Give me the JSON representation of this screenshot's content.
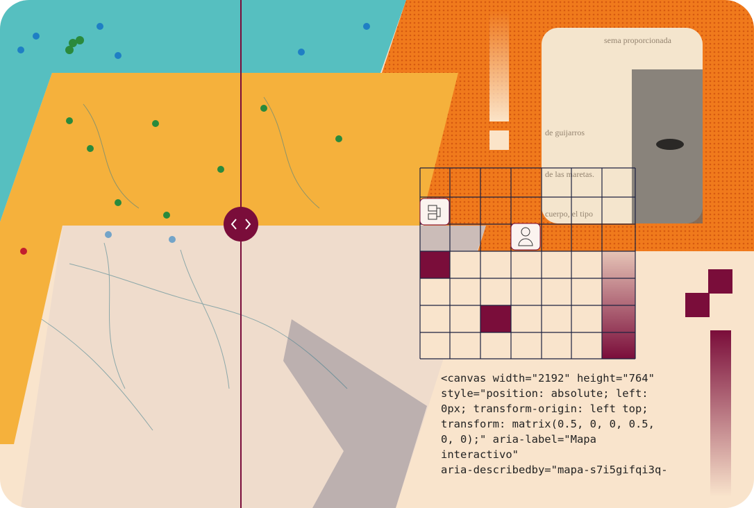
{
  "code": {
    "lines": [
      "<canvas width=\"2192\" height=\"764\"",
      "style=\"position: absolute; left:",
      "0px; transform-origin: left top;",
      "transform: matrix(0.5, 0, 0, 0.5,",
      "0, 0);\" aria-label=\"Mapa",
      "interactivo\"",
      "aria-describedby=\"mapa-s7i5gifqi3q-"
    ]
  },
  "paper": {
    "lines": [
      "sema proporcionada",
      "de guijarros",
      "de las maretas.",
      "cuerpo, el tipo"
    ]
  }
}
